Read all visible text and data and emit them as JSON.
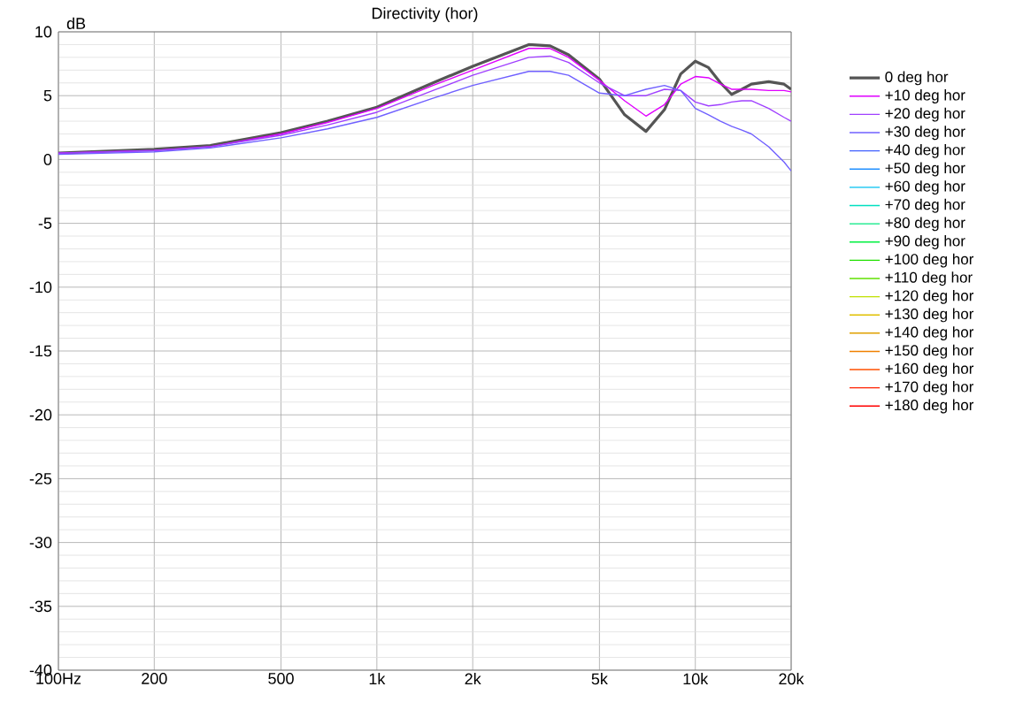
{
  "chart_data": {
    "type": "line",
    "title": "Directivity (hor)",
    "ylabel": "dB",
    "log": "x",
    "grid": true,
    "legend": "right",
    "marker": "none",
    "line_style": "solid",
    "x": [
      100,
      200,
      300,
      500,
      700,
      1000,
      1500,
      2000,
      3000,
      3500,
      4000,
      5000,
      6000,
      7000,
      8000,
      9000,
      10000,
      11000,
      12000,
      13000,
      14000,
      15000,
      17000,
      19000,
      20000
    ],
    "xlim": [
      100,
      20000
    ],
    "xticks": [
      {
        "value": 100,
        "label": "100Hz"
      },
      200,
      500,
      {
        "value": 1000,
        "label": "1k"
      },
      {
        "value": 2000,
        "label": "2k"
      },
      {
        "value": 5000,
        "label": "5k"
      },
      {
        "value": 10000,
        "label": "10k"
      },
      {
        "value": 20000,
        "label": "20k"
      }
    ],
    "ylim": [
      -40,
      10
    ],
    "yticks": [
      -40,
      -35,
      -30,
      -25,
      -20,
      -15,
      -10,
      -5,
      0,
      5,
      10
    ],
    "series": [
      {
        "name": "0 deg hor",
        "color": "#555555",
        "values": [
          0.5,
          0.8,
          1.1,
          2.1,
          3.0,
          4.1,
          6.0,
          7.3,
          9.0,
          8.9,
          8.2,
          6.3,
          3.5,
          2.2,
          3.9,
          6.7,
          7.7,
          7.2,
          6.0,
          5.1,
          5.5,
          5.9,
          6.1,
          5.9,
          5.5
        ]
      },
      {
        "name": "+10 deg hor",
        "color": "#e000ff",
        "values": [
          0.5,
          0.7,
          1.0,
          2.0,
          2.9,
          4.0,
          5.8,
          7.0,
          8.7,
          8.7,
          8.0,
          6.2,
          4.6,
          3.4,
          4.3,
          5.9,
          6.5,
          6.4,
          5.9,
          5.5,
          5.5,
          5.5,
          5.4,
          5.4,
          5.3
        ]
      },
      {
        "name": "+20 deg hor",
        "color": "#a040ff",
        "values": [
          0.5,
          0.7,
          1.0,
          1.9,
          2.7,
          3.7,
          5.4,
          6.6,
          8.0,
          8.1,
          7.6,
          6.0,
          5.0,
          5.0,
          5.5,
          5.4,
          4.5,
          4.2,
          4.3,
          4.5,
          4.6,
          4.6,
          4.0,
          3.3,
          3.0
        ]
      },
      {
        "name": "+30 deg hor",
        "color": "#7060ff",
        "values": [
          0.4,
          0.6,
          0.9,
          1.7,
          2.4,
          3.3,
          4.8,
          5.8,
          6.9,
          6.9,
          6.6,
          5.2,
          5.0,
          5.5,
          5.8,
          5.4,
          4.0,
          3.5,
          3.0,
          2.6,
          2.3,
          2.0,
          1.0,
          -0.2,
          -0.9
        ]
      },
      {
        "name": "+40 deg hor",
        "color": "#4060ff",
        "values": [
          null,
          null,
          null,
          null,
          null,
          null,
          null,
          null,
          null,
          null,
          null,
          null,
          null,
          null,
          null,
          null,
          null,
          null,
          null,
          null,
          null,
          null,
          null,
          null,
          null
        ]
      },
      {
        "name": "+50 deg hor",
        "color": "#2090ff",
        "values": [
          null,
          null,
          null,
          null,
          null,
          null,
          null,
          null,
          null,
          null,
          null,
          null,
          null,
          null,
          null,
          null,
          null,
          null,
          null,
          null,
          null,
          null,
          null,
          null,
          null
        ]
      },
      {
        "name": "+60 deg hor",
        "color": "#00c0f0",
        "values": [
          null,
          null,
          null,
          null,
          null,
          null,
          null,
          null,
          null,
          null,
          null,
          null,
          null,
          null,
          null,
          null,
          null,
          null,
          null,
          null,
          null,
          null,
          null,
          null,
          null
        ]
      },
      {
        "name": "+70 deg hor",
        "color": "#00e0c0",
        "values": [
          null,
          null,
          null,
          null,
          null,
          null,
          null,
          null,
          null,
          null,
          null,
          null,
          null,
          null,
          null,
          null,
          null,
          null,
          null,
          null,
          null,
          null,
          null,
          null,
          null
        ]
      },
      {
        "name": "+80 deg hor",
        "color": "#00e880",
        "values": [
          null,
          null,
          null,
          null,
          null,
          null,
          null,
          null,
          null,
          null,
          null,
          null,
          null,
          null,
          null,
          null,
          null,
          null,
          null,
          null,
          null,
          null,
          null,
          null,
          null
        ]
      },
      {
        "name": "+90 deg hor",
        "color": "#00f040",
        "values": [
          null,
          null,
          null,
          null,
          null,
          null,
          null,
          null,
          null,
          null,
          null,
          null,
          null,
          null,
          null,
          null,
          null,
          null,
          null,
          null,
          null,
          null,
          null,
          null,
          null
        ]
      },
      {
        "name": "+100 deg hor",
        "color": "#20e000",
        "values": [
          null,
          null,
          null,
          null,
          null,
          null,
          null,
          null,
          null,
          null,
          null,
          null,
          null,
          null,
          null,
          null,
          null,
          null,
          null,
          null,
          null,
          null,
          null,
          null,
          null
        ]
      },
      {
        "name": "+110 deg hor",
        "color": "#60e000",
        "values": [
          null,
          null,
          null,
          null,
          null,
          null,
          null,
          null,
          null,
          null,
          null,
          null,
          null,
          null,
          null,
          null,
          null,
          null,
          null,
          null,
          null,
          null,
          null,
          null,
          null
        ]
      },
      {
        "name": "+120 deg hor",
        "color": "#c0e000",
        "values": [
          null,
          null,
          null,
          null,
          null,
          null,
          null,
          null,
          null,
          null,
          null,
          null,
          null,
          null,
          null,
          null,
          null,
          null,
          null,
          null,
          null,
          null,
          null,
          null,
          null
        ]
      },
      {
        "name": "+130 deg hor",
        "color": "#e0c000",
        "values": [
          null,
          null,
          null,
          null,
          null,
          null,
          null,
          null,
          null,
          null,
          null,
          null,
          null,
          null,
          null,
          null,
          null,
          null,
          null,
          null,
          null,
          null,
          null,
          null,
          null
        ]
      },
      {
        "name": "+140 deg hor",
        "color": "#e0a000",
        "values": [
          null,
          null,
          null,
          null,
          null,
          null,
          null,
          null,
          null,
          null,
          null,
          null,
          null,
          null,
          null,
          null,
          null,
          null,
          null,
          null,
          null,
          null,
          null,
          null,
          null
        ]
      },
      {
        "name": "+150 deg hor",
        "color": "#f08000",
        "values": [
          null,
          null,
          null,
          null,
          null,
          null,
          null,
          null,
          null,
          null,
          null,
          null,
          null,
          null,
          null,
          null,
          null,
          null,
          null,
          null,
          null,
          null,
          null,
          null,
          null
        ]
      },
      {
        "name": "+160 deg hor",
        "color": "#ff5000",
        "values": [
          null,
          null,
          null,
          null,
          null,
          null,
          null,
          null,
          null,
          null,
          null,
          null,
          null,
          null,
          null,
          null,
          null,
          null,
          null,
          null,
          null,
          null,
          null,
          null,
          null
        ]
      },
      {
        "name": "+170 deg hor",
        "color": "#ff2000",
        "values": [
          null,
          null,
          null,
          null,
          null,
          null,
          null,
          null,
          null,
          null,
          null,
          null,
          null,
          null,
          null,
          null,
          null,
          null,
          null,
          null,
          null,
          null,
          null,
          null,
          null
        ]
      },
      {
        "name": "+180 deg hor",
        "color": "#ff0000",
        "values": [
          null,
          null,
          null,
          null,
          null,
          null,
          null,
          null,
          null,
          null,
          null,
          null,
          null,
          null,
          null,
          null,
          null,
          null,
          null,
          null,
          null,
          null,
          null,
          null,
          null
        ]
      }
    ]
  }
}
